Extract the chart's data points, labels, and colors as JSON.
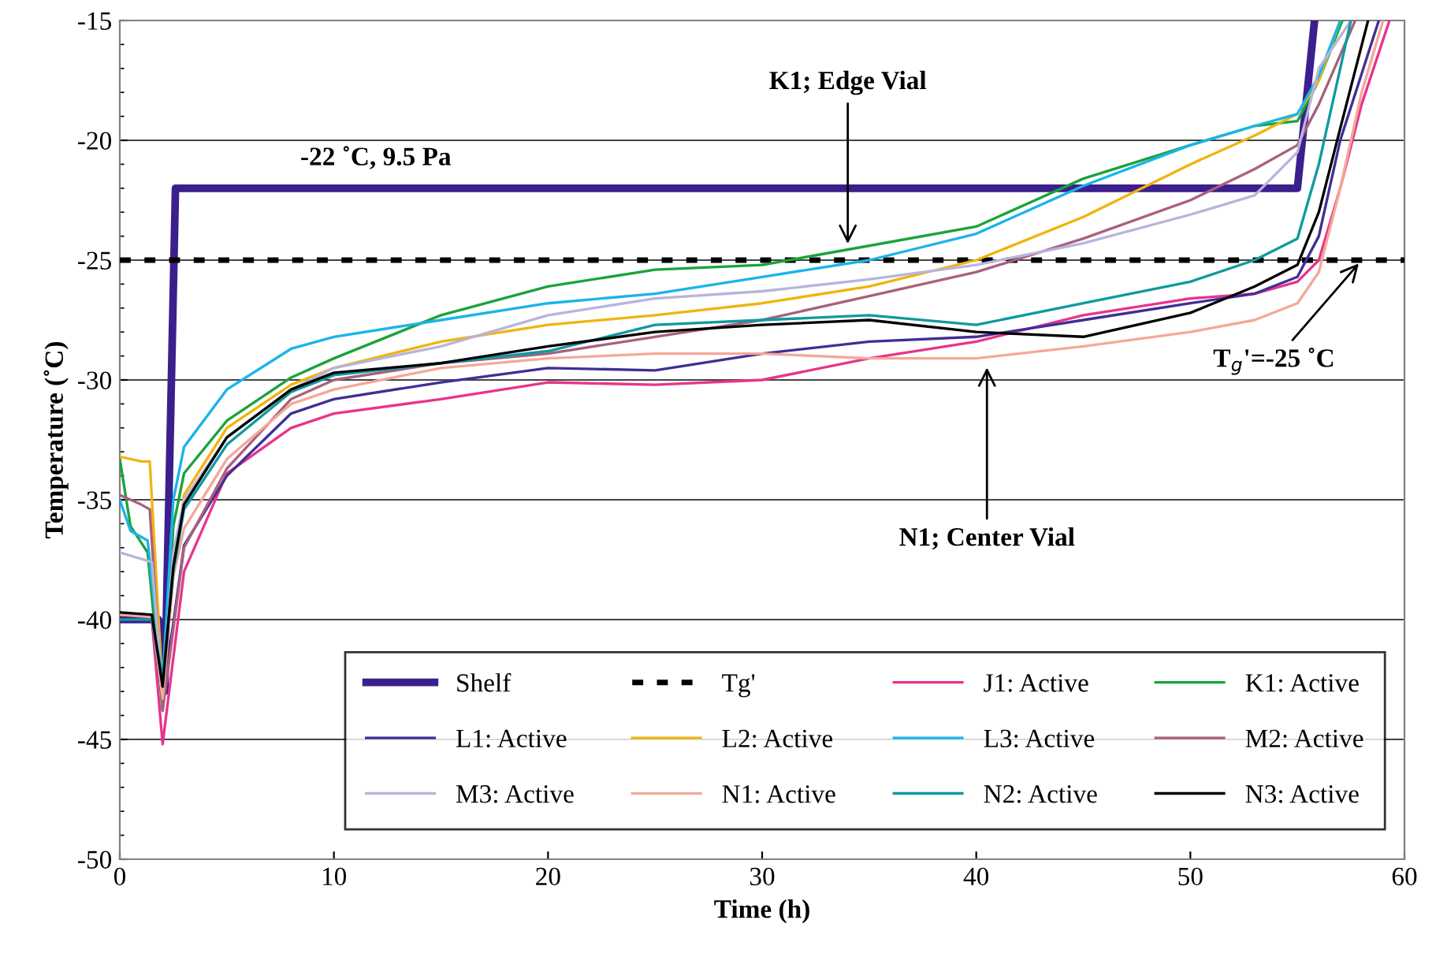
{
  "chart_data": {
    "type": "line",
    "xlabel": "Time (h)",
    "ylabel": "Temperature (˚C)",
    "xlim": [
      0,
      60
    ],
    "xticks": [
      0,
      10,
      20,
      30,
      40,
      50,
      60
    ],
    "ylim": [
      -50,
      -15
    ],
    "yticks": [
      -50,
      -45,
      -40,
      -35,
      -30,
      -25,
      -20,
      -15
    ],
    "grid": "y",
    "legend": "bottom right",
    "marker": "none",
    "annotations": [
      {
        "text": "-22 ˚C, 9.5 Pa",
        "x": 14,
        "y": -22
      },
      {
        "text": "K1; Edge Vial",
        "x": 34,
        "y": -24.5
      },
      {
        "text": "N1; Center Vial",
        "x": 40.5,
        "y": -29.3
      },
      {
        "text": "T$_{g}$'=-25 ˚C",
        "x": 58,
        "y": -25
      }
    ],
    "series": [
      {
        "name": "Shelf",
        "color": "#3b1f8c",
        "x": [
          0,
          1.8,
          2.1,
          2.6,
          55,
          55.8
        ],
        "values": [
          -40,
          -40,
          -43,
          -22,
          -22,
          -15
        ]
      },
      {
        "name": "Tg'",
        "color": "#000000",
        "line_style": "dashed",
        "x": [
          0,
          60
        ],
        "values": [
          -25,
          -25
        ]
      },
      {
        "name": "J1: Active",
        "color": "#e8348c",
        "x": [
          0,
          1.5,
          2,
          3,
          5,
          8,
          10,
          15,
          20,
          25,
          30,
          35,
          40,
          45,
          50,
          53,
          55,
          56,
          57,
          58,
          59.3
        ],
        "values": [
          -40,
          -40,
          -45.2,
          -38,
          -33.9,
          -32,
          -31.4,
          -30.8,
          -30.1,
          -30.2,
          -30,
          -29.1,
          -28.4,
          -27.3,
          -26.6,
          -26.4,
          -25.9,
          -25,
          -22,
          -18.5,
          -15
        ]
      },
      {
        "name": "K1: Active",
        "color": "#1aa33a",
        "x": [
          0,
          0.5,
          1.3,
          2,
          2.5,
          3,
          5,
          8,
          10,
          15,
          20,
          25,
          30,
          35,
          40,
          45,
          50,
          53,
          55,
          56,
          57.1
        ],
        "values": [
          -33.3,
          -36.1,
          -37.2,
          -43.8,
          -36.1,
          -33.9,
          -31.7,
          -29.9,
          -29.1,
          -27.3,
          -26.1,
          -25.4,
          -25.2,
          -24.4,
          -23.6,
          -21.6,
          -20.2,
          -19.4,
          -19.2,
          -17.5,
          -15
        ]
      },
      {
        "name": "L1: Active",
        "color": "#3f2f94",
        "x": [
          0,
          1.5,
          2,
          3,
          5,
          8,
          10,
          15,
          20,
          25,
          30,
          35,
          40,
          45,
          50,
          53,
          55,
          56,
          57,
          58.8
        ],
        "values": [
          -40,
          -40,
          -43.4,
          -36.9,
          -34,
          -31.4,
          -30.8,
          -30.1,
          -29.5,
          -29.6,
          -28.9,
          -28.4,
          -28.2,
          -27.5,
          -26.8,
          -26.4,
          -25.7,
          -24,
          -20,
          -15
        ]
      },
      {
        "name": "L2: Active",
        "color": "#f0b410",
        "x": [
          0,
          1,
          1.4,
          2,
          2.5,
          3,
          5,
          8,
          10,
          15,
          20,
          25,
          30,
          35,
          40,
          45,
          50,
          53,
          55,
          56,
          57
        ],
        "values": [
          -33.2,
          -33.4,
          -33.4,
          -43,
          -38.1,
          -34.8,
          -32,
          -30.2,
          -29.5,
          -28.4,
          -27.7,
          -27.3,
          -26.8,
          -26.1,
          -25,
          -23.2,
          -21,
          -19.8,
          -18.9,
          -17.5,
          -15
        ]
      },
      {
        "name": "L3: Active",
        "color": "#1ab4ea",
        "x": [
          0,
          0.5,
          1.3,
          2,
          2.5,
          3,
          5,
          8,
          10,
          15,
          20,
          25,
          30,
          35,
          40,
          45,
          50,
          53,
          55,
          56,
          57
        ],
        "values": [
          -35,
          -36.3,
          -36.7,
          -42.6,
          -35,
          -32.8,
          -30.4,
          -28.7,
          -28.2,
          -27.5,
          -26.8,
          -26.4,
          -25.7,
          -25,
          -23.9,
          -21.9,
          -20.2,
          -19.4,
          -18.9,
          -17.3,
          -15
        ]
      },
      {
        "name": "M2: Active",
        "color": "#a8607e",
        "x": [
          0,
          1,
          1.4,
          2,
          3,
          5,
          8,
          10,
          15,
          20,
          25,
          30,
          35,
          40,
          45,
          50,
          53,
          55,
          56,
          57.7
        ],
        "values": [
          -34.8,
          -35.2,
          -35.4,
          -43.8,
          -37,
          -33.7,
          -30.8,
          -30,
          -29.3,
          -28.9,
          -28.2,
          -27.5,
          -26.5,
          -25.5,
          -24.1,
          -22.5,
          -21.2,
          -20.2,
          -18.5,
          -15
        ]
      },
      {
        "name": "M3: Active",
        "color": "#b8b4dc",
        "x": [
          0,
          1.5,
          2,
          2.5,
          3,
          5,
          8,
          10,
          15,
          20,
          25,
          30,
          35,
          40,
          45,
          50,
          53,
          55,
          56,
          57.5
        ],
        "values": [
          -37.2,
          -37.6,
          -43.1,
          -37.2,
          -35,
          -32.4,
          -30.4,
          -29.5,
          -28.6,
          -27.3,
          -26.6,
          -26.3,
          -25.8,
          -25.2,
          -24.3,
          -23.1,
          -22.3,
          -20.5,
          -17,
          -15
        ]
      },
      {
        "name": "N1: Active",
        "color": "#f4a898",
        "x": [
          0,
          1.5,
          2,
          2.5,
          3,
          5,
          8,
          10,
          15,
          20,
          25,
          30,
          35,
          40,
          45,
          50,
          53,
          55,
          56,
          57,
          58,
          59
        ],
        "values": [
          -39.8,
          -39.9,
          -43.3,
          -38.2,
          -36.2,
          -33.3,
          -31,
          -30.4,
          -29.5,
          -29.1,
          -28.9,
          -28.9,
          -29.1,
          -29.1,
          -28.6,
          -28,
          -27.5,
          -26.8,
          -25.5,
          -22,
          -18,
          -15
        ]
      },
      {
        "name": "N2: Active",
        "color": "#10999f",
        "x": [
          0,
          1.5,
          2,
          2.5,
          3,
          5,
          8,
          10,
          15,
          20,
          25,
          30,
          35,
          40,
          45,
          50,
          53,
          55,
          56,
          57.5
        ],
        "values": [
          -40,
          -40,
          -42.4,
          -38,
          -35.4,
          -32.7,
          -30.5,
          -29.8,
          -29.3,
          -28.8,
          -27.7,
          -27.5,
          -27.3,
          -27.7,
          -26.8,
          -25.9,
          -25,
          -24.1,
          -21,
          -15
        ]
      },
      {
        "name": "N3: Active",
        "color": "#000000",
        "x": [
          0,
          1.5,
          2,
          2.5,
          3,
          5,
          8,
          10,
          15,
          20,
          25,
          30,
          35,
          40,
          45,
          50,
          53,
          55,
          56,
          57,
          58.3
        ],
        "values": [
          -39.7,
          -39.8,
          -42.8,
          -37.8,
          -35.2,
          -32.4,
          -30.4,
          -29.7,
          -29.3,
          -28.6,
          -28,
          -27.7,
          -27.5,
          -28,
          -28.2,
          -27.2,
          -26.1,
          -25.2,
          -23,
          -19.5,
          -15
        ]
      }
    ]
  }
}
